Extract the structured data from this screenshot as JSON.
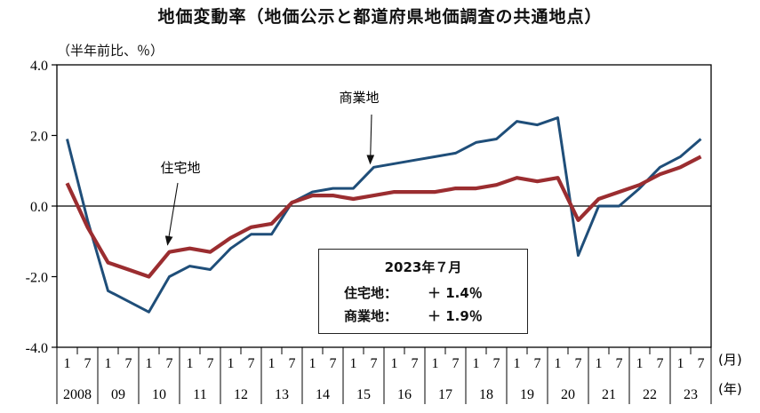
{
  "title": "地価変動率（地価公示と都道府県地価調査の共通地点）",
  "colors": {
    "residential": "#9b2d30",
    "commercial": "#1f4e79",
    "axis": "#000000"
  },
  "chart_data": {
    "type": "line",
    "title": "地価変動率（地価公示と都道府県地価調査の共通地点）",
    "ylabel": "（半年前比、％）",
    "ylim": [
      -4.0,
      4.0
    ],
    "yticks": [
      "4.0",
      "2.0",
      "0.0",
      "-2.0",
      "-4.0"
    ],
    "ytick_values": [
      4.0,
      2.0,
      0.0,
      -2.0,
      -4.0
    ],
    "month_label": "(月)",
    "year_label": "(年)",
    "months": [
      "1",
      "7",
      "1",
      "7",
      "1",
      "7",
      "1",
      "7",
      "1",
      "7",
      "1",
      "7",
      "1",
      "7",
      "1",
      "7",
      "1",
      "7",
      "1",
      "7",
      "1",
      "7",
      "1",
      "7",
      "1",
      "7",
      "1",
      "7",
      "1",
      "7",
      "1",
      "7"
    ],
    "years": [
      "2008",
      "09",
      "10",
      "11",
      "12",
      "13",
      "14",
      "15",
      "16",
      "17",
      "18",
      "19",
      "20",
      "21",
      "22",
      "23"
    ],
    "series": [
      {
        "name": "住宅地",
        "color": "#9b2d30",
        "values": [
          0.65,
          -0.6,
          -1.6,
          -1.8,
          -2.0,
          -1.3,
          -1.2,
          -1.3,
          -0.9,
          -0.6,
          -0.5,
          0.1,
          0.3,
          0.3,
          0.2,
          0.3,
          0.4,
          0.4,
          0.4,
          0.5,
          0.5,
          0.6,
          0.8,
          0.7,
          0.8,
          -0.4,
          0.2,
          0.4,
          0.6,
          0.9,
          1.1,
          1.4
        ]
      },
      {
        "name": "商業地",
        "color": "#1f4e79",
        "values": [
          1.9,
          -0.4,
          -2.4,
          -2.7,
          -3.0,
          -2.0,
          -1.7,
          -1.8,
          -1.2,
          -0.8,
          -0.8,
          0.1,
          0.4,
          0.5,
          0.5,
          1.1,
          1.2,
          1.3,
          1.4,
          1.5,
          1.8,
          1.9,
          2.4,
          2.3,
          2.5,
          -1.4,
          0.0,
          0.0,
          0.5,
          1.1,
          1.4,
          1.9
        ]
      }
    ],
    "annotations": [
      {
        "label": "商業地",
        "target_index": 15,
        "target_series": "商業地"
      },
      {
        "label": "住宅地",
        "target_index": 5,
        "target_series": "住宅地"
      }
    ]
  },
  "infobox": {
    "title": "2023年７月",
    "rows": [
      {
        "label": "住宅地：",
        "value": "＋ 1.4％"
      },
      {
        "label": "商業地：",
        "value": "＋ 1.9％"
      }
    ]
  }
}
